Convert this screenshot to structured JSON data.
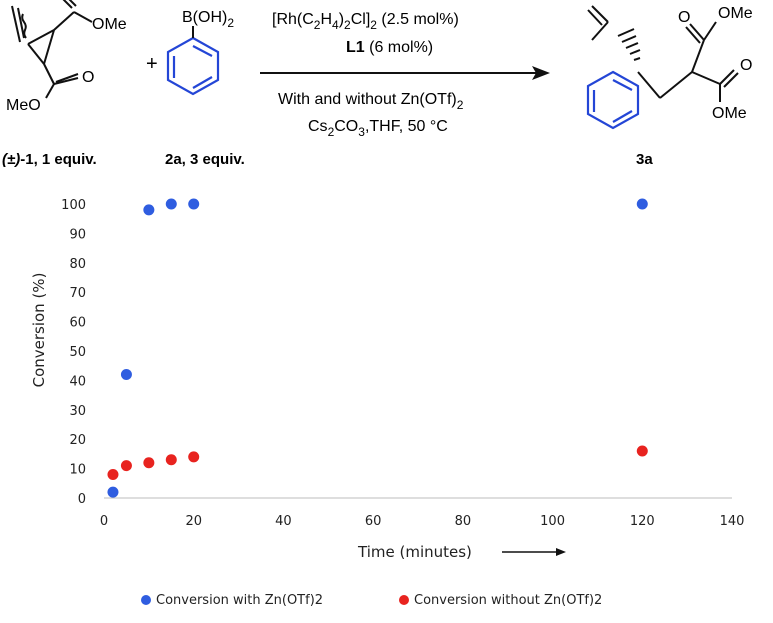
{
  "scheme": {
    "reactant1": {
      "label_prefix": "(±)",
      "label_rest": "-1, 1 equiv.",
      "ome_top": "OMe",
      "meo_bottom": "MeO",
      "o_right": "O"
    },
    "plus": "+",
    "reactant2": {
      "label": "2a, 3 equiv.",
      "boron": "B(OH)",
      "boron_sub": "2"
    },
    "conditions": {
      "catalyst_a": "[Rh(C",
      "catalyst_sub1": "2",
      "catalyst_b": "H",
      "catalyst_sub2": "4",
      "catalyst_c": ")",
      "catalyst_sub3": "2",
      "catalyst_d": "Cl]",
      "catalyst_sub4": "2",
      "catalyst_e": " (2.5 mol%)",
      "ligand": "L1",
      "ligand_loading": " (6 mol%)",
      "additive": "With and without Zn(OTf)",
      "additive_sub": "2",
      "base_a": "Cs",
      "base_sub1": "2",
      "base_b": "CO",
      "base_sub2": "3",
      "base_c": ",THF, 50 °C"
    },
    "product": {
      "label": "3a",
      "o_top": "O",
      "ome_top": "OMe",
      "o_bottom": "O",
      "ome_bottom": "OMe"
    }
  },
  "chart_data": {
    "type": "scatter",
    "xlabel": "Time (minutes)",
    "ylabel": "Conversion (%)",
    "xlim": [
      0,
      140
    ],
    "ylim": [
      0,
      100
    ],
    "xticks": [
      0,
      20,
      40,
      60,
      80,
      100,
      120,
      140
    ],
    "yticks": [
      0,
      10,
      20,
      30,
      40,
      50,
      60,
      70,
      80,
      90,
      100
    ],
    "grid": false,
    "legend_position": "bottom",
    "series": [
      {
        "name": "Conversion with Zn(OTf)2",
        "color": "#2f5de0",
        "x": [
          2,
          5,
          10,
          15,
          20,
          120
        ],
        "y": [
          2,
          42,
          98,
          100,
          100,
          100
        ]
      },
      {
        "name": "Conversion without Zn(OTf)2",
        "color": "#e8231f",
        "x": [
          2,
          5,
          10,
          15,
          20,
          120
        ],
        "y": [
          8,
          11,
          12,
          13,
          14,
          16
        ]
      }
    ]
  }
}
